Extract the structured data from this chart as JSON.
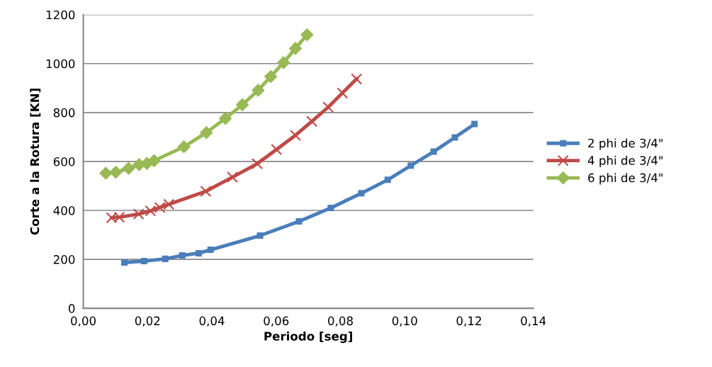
{
  "chart_data": {
    "type": "line",
    "xlabel": "Periodo [seg]",
    "ylabel": "Corte a la Rotura [KN]",
    "xlim": [
      0,
      0.14
    ],
    "xticks": [
      {
        "value": 0,
        "label": "0,00"
      },
      {
        "value": 0.02,
        "label": "0,02"
      },
      {
        "value": 0.04,
        "label": "0,04"
      },
      {
        "value": 0.06,
        "label": "0,06"
      },
      {
        "value": 0.08,
        "label": "0,08"
      },
      {
        "value": 0.1,
        "label": "0,10"
      },
      {
        "value": 0.12,
        "label": "0,12"
      },
      {
        "value": 0.14,
        "label": "0,14"
      }
    ],
    "ylim": [
      0,
      1200
    ],
    "yticks": [
      0,
      200,
      400,
      600,
      800,
      1000,
      1200
    ],
    "grid": "y",
    "legend": "right",
    "line_style": "solid",
    "series": [
      {
        "name": "2 phi de 3/4\"",
        "color": "#4a7ebb",
        "marker": "square",
        "x": [
          0.0128,
          0.0189,
          0.0255,
          0.0308,
          0.0359,
          0.0396,
          0.055,
          0.0671,
          0.077,
          0.0865,
          0.0947,
          0.1019,
          0.109,
          0.1156,
          0.1217
        ],
        "values": [
          187,
          193,
          202,
          216,
          225,
          239,
          297,
          355,
          410,
          470,
          525,
          583,
          640,
          698,
          753
        ]
      },
      {
        "name": "4 phi de 3/4\"",
        "color": "#be4b48",
        "marker": "cross",
        "x": [
          0.0088,
          0.0112,
          0.0172,
          0.0209,
          0.0238,
          0.0266,
          0.0381,
          0.0464,
          0.0541,
          0.0601,
          0.066,
          0.0711,
          0.0762,
          0.0806,
          0.085
        ],
        "values": [
          370,
          372,
          385,
          398,
          412,
          425,
          478,
          536,
          591,
          649,
          707,
          764,
          822,
          880,
          937
        ]
      },
      {
        "name": "6 phi de 3/4\"",
        "color": "#98b954",
        "marker": "diamond",
        "x": [
          0.007,
          0.0101,
          0.0141,
          0.0174,
          0.0198,
          0.022,
          0.0313,
          0.0383,
          0.0442,
          0.0495,
          0.0544,
          0.0583,
          0.0623,
          0.066,
          0.0696
        ],
        "values": [
          552,
          556,
          572,
          587,
          592,
          603,
          660,
          718,
          776,
          832,
          891,
          947,
          1004,
          1062,
          1118
        ]
      }
    ]
  }
}
